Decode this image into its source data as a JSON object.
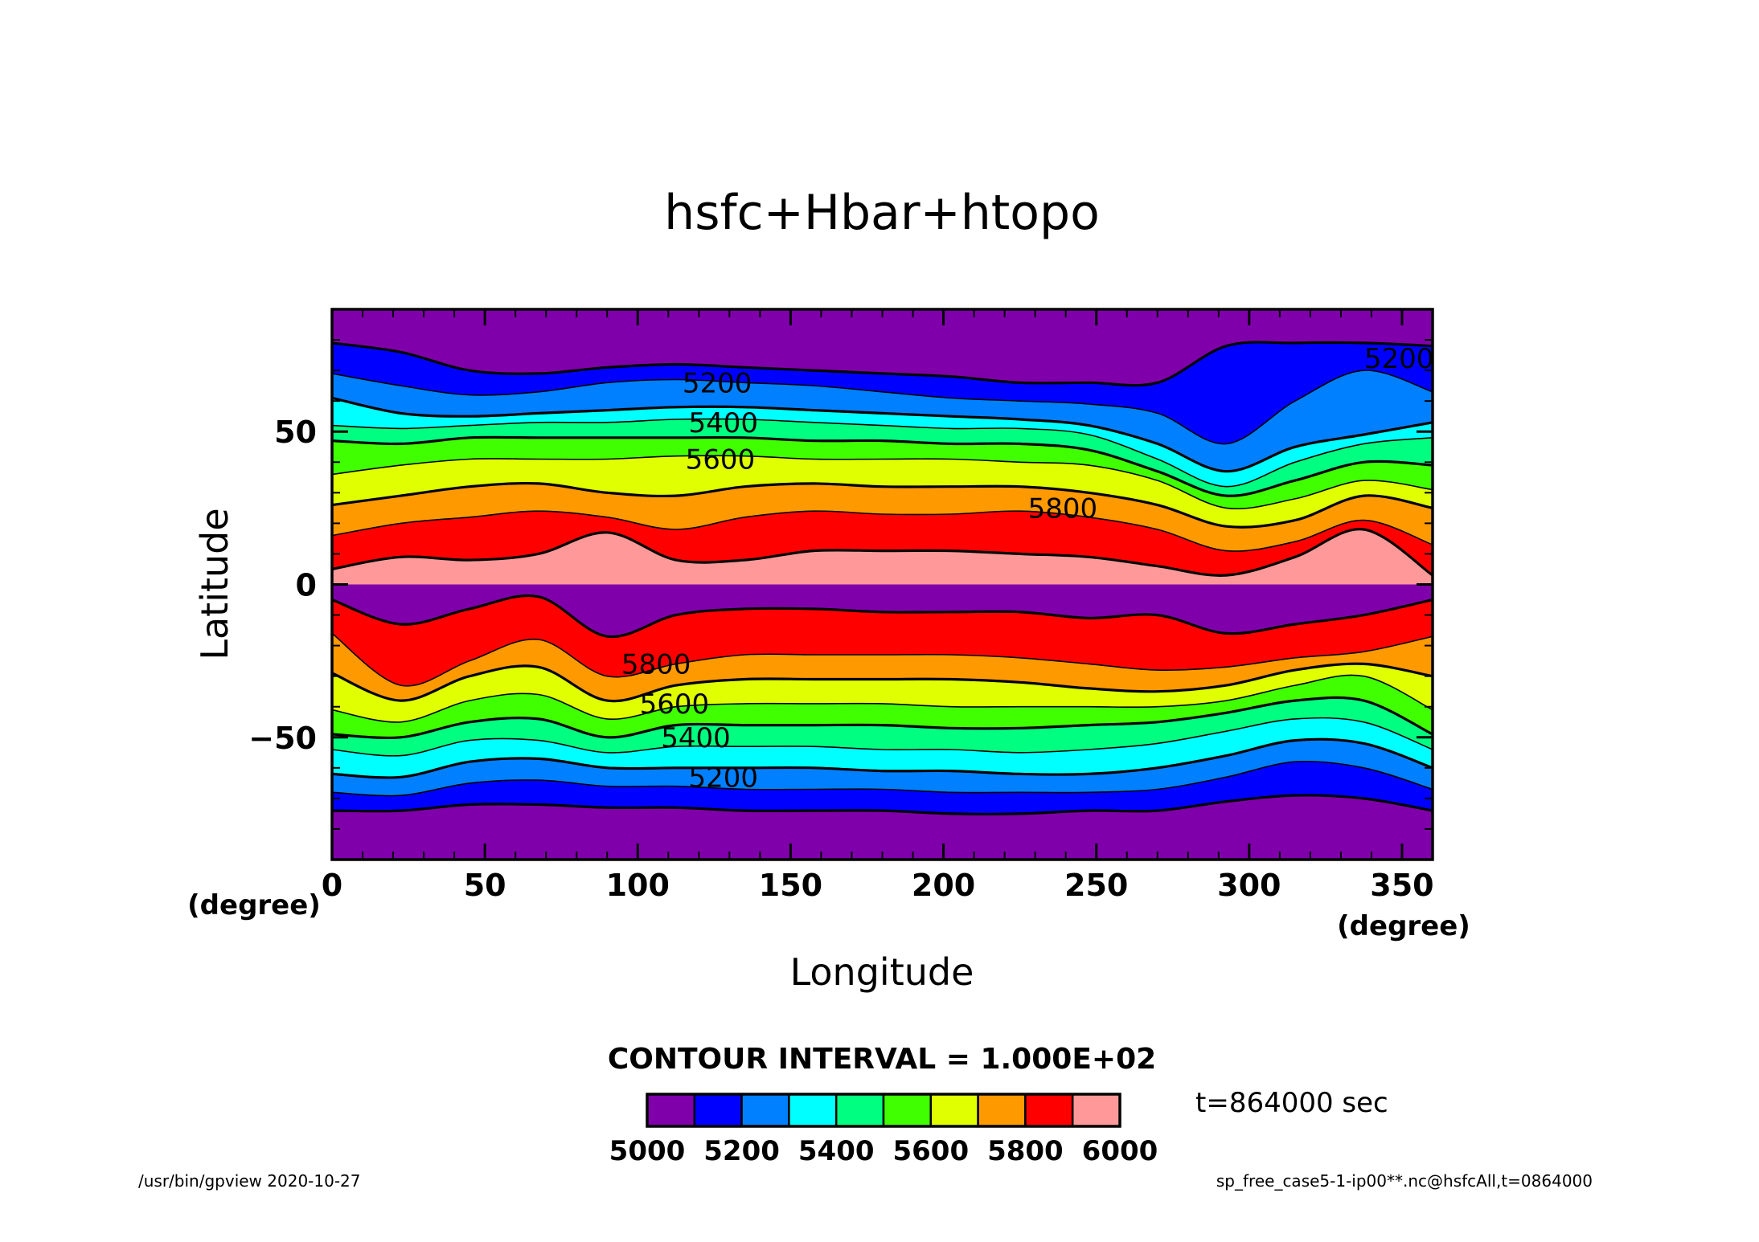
{
  "chart_data": {
    "type": "heatmap",
    "title": "hsfc+Hbar+htopo",
    "xlabel": "Longitude",
    "ylabel": "Latitude",
    "x_unit": "(degree)",
    "y_unit": "(degree)",
    "xlim": [
      0,
      360
    ],
    "ylim": [
      -90,
      90
    ],
    "x_ticks": [
      0,
      50,
      100,
      150,
      200,
      250,
      300,
      350
    ],
    "y_ticks": [
      -50,
      0,
      50
    ],
    "x_tick_labels": [
      "0",
      "50",
      "100",
      "150",
      "200",
      "250",
      "300",
      "350"
    ],
    "y_tick_labels": [
      "−50",
      "0",
      "50"
    ],
    "grid": false,
    "contour_interval_text": "CONTOUR INTERVAL = 1.000E+02",
    "time_text": "t=864000 sec",
    "contour_labels": [
      {
        "text": "5200",
        "lon": 126,
        "lat": 66
      },
      {
        "text": "5400",
        "lon": 128,
        "lat": 53
      },
      {
        "text": "5600",
        "lon": 127,
        "lat": 41
      },
      {
        "text": "5800",
        "lon": 239,
        "lat": 25
      },
      {
        "text": "5200",
        "lon": 349,
        "lat": 74
      },
      {
        "text": "5800",
        "lon": 106,
        "lat": -26
      },
      {
        "text": "5600",
        "lon": 112,
        "lat": -39
      },
      {
        "text": "5400",
        "lon": 119,
        "lat": -50
      },
      {
        "text": "5200",
        "lon": 128,
        "lat": -63
      }
    ],
    "colorbar": {
      "levels": [
        5000,
        5100,
        5200,
        5300,
        5400,
        5500,
        5600,
        5700,
        5800,
        5900,
        6000
      ],
      "tick_labels": [
        "5000",
        "5200",
        "5400",
        "5600",
        "5800",
        "6000"
      ],
      "colors": [
        "#7f00aa",
        "#0000ff",
        "#0080ff",
        "#00ffff",
        "#00ff80",
        "#40ff00",
        "#e0ff00",
        "#ff9900",
        "#ff0000",
        "#ff9999"
      ]
    },
    "bands_north": [
      {
        "color": "#0000ff",
        "lat": [
          79,
          76,
          70,
          69,
          71,
          72,
          71,
          70,
          69,
          68,
          66,
          66,
          66,
          78,
          79,
          79,
          78
        ]
      },
      {
        "color": "#0080ff",
        "lat": [
          69,
          65,
          62,
          63,
          66,
          67,
          66,
          65,
          63,
          61,
          60,
          59,
          56,
          46,
          60,
          70,
          63
        ]
      },
      {
        "color": "#00ffff",
        "lat": [
          61,
          56,
          55,
          56,
          57,
          58,
          58,
          57,
          56,
          55,
          54,
          52,
          46,
          37,
          45,
          49,
          53
        ]
      },
      {
        "color": "#00ff80",
        "lat": [
          52,
          51,
          52,
          53,
          53,
          54,
          54,
          53,
          52,
          51,
          51,
          49,
          41,
          32,
          40,
          46,
          48
        ]
      },
      {
        "color": "#40ff00",
        "lat": [
          47,
          46,
          48,
          48,
          48,
          48,
          48,
          47,
          47,
          46,
          46,
          44,
          37,
          29,
          34,
          40,
          39
        ]
      },
      {
        "color": "#e0ff00",
        "lat": [
          36,
          39,
          41,
          41,
          41,
          42,
          42,
          41,
          41,
          41,
          40,
          39,
          34,
          25,
          28,
          34,
          31
        ]
      },
      {
        "color": "#ff9900",
        "lat": [
          26,
          29,
          32,
          33,
          30,
          29,
          32,
          33,
          32,
          32,
          32,
          30,
          26,
          19,
          21,
          29,
          25
        ]
      },
      {
        "color": "#ff0000",
        "lat": [
          16,
          20,
          22,
          24,
          22,
          18,
          22,
          24,
          23,
          23,
          24,
          22,
          18,
          11,
          14,
          21,
          13
        ]
      },
      {
        "color": "#ff9999",
        "lat": [
          5,
          9,
          8,
          10,
          17,
          8,
          8,
          11,
          11,
          11,
          10,
          9,
          6,
          3,
          9,
          18,
          3
        ]
      }
    ],
    "bands_south": [
      {
        "color": "#ff0000",
        "lat": [
          -5,
          -13,
          -8,
          -4,
          -17,
          -10,
          -8,
          -8,
          -9,
          -9,
          -9,
          -11,
          -10,
          -16,
          -13,
          -10,
          -5
        ]
      },
      {
        "color": "#ff9900",
        "lat": [
          -16,
          -33,
          -25,
          -18,
          -30,
          -26,
          -23,
          -23,
          -23,
          -23,
          -24,
          -26,
          -28,
          -27,
          -24,
          -22,
          -17
        ]
      },
      {
        "color": "#e0ff00",
        "lat": [
          -29,
          -38,
          -30,
          -27,
          -38,
          -33,
          -31,
          -31,
          -31,
          -31,
          -32,
          -34,
          -35,
          -33,
          -28,
          -26,
          -30
        ]
      },
      {
        "color": "#40ff00",
        "lat": [
          -41,
          -45,
          -38,
          -36,
          -44,
          -40,
          -39,
          -39,
          -39,
          -40,
          -40,
          -40,
          -40,
          -38,
          -33,
          -30,
          -41
        ]
      },
      {
        "color": "#00ff80",
        "lat": [
          -49,
          -50,
          -45,
          -44,
          -50,
          -46,
          -46,
          -46,
          -46,
          -47,
          -47,
          -46,
          -45,
          -42,
          -38,
          -38,
          -49
        ]
      },
      {
        "color": "#00ffff",
        "lat": [
          -54,
          -56,
          -51,
          -51,
          -55,
          -53,
          -53,
          -53,
          -54,
          -54,
          -55,
          -54,
          -52,
          -48,
          -44,
          -45,
          -54
        ]
      },
      {
        "color": "#0080ff",
        "lat": [
          -62,
          -63,
          -58,
          -57,
          -60,
          -60,
          -60,
          -60,
          -61,
          -61,
          -62,
          -62,
          -60,
          -56,
          -51,
          -52,
          -60
        ]
      },
      {
        "color": "#0000ff",
        "lat": [
          -68,
          -69,
          -65,
          -64,
          -66,
          -66,
          -67,
          -67,
          -67,
          -68,
          -68,
          -68,
          -67,
          -63,
          -58,
          -60,
          -67
        ]
      },
      {
        "color": "#7f00aa",
        "lat": [
          -74,
          -74,
          -72,
          -72,
          -73,
          -73,
          -74,
          -74,
          -74,
          -75,
          -75,
          -74,
          -74,
          -71,
          -69,
          -70,
          -74
        ]
      }
    ]
  },
  "footer": {
    "left": "/usr/bin/gpview   2020-10-27",
    "right": "sp_free_case5-1-ip00**.nc@hsfcAll,t=0864000"
  }
}
